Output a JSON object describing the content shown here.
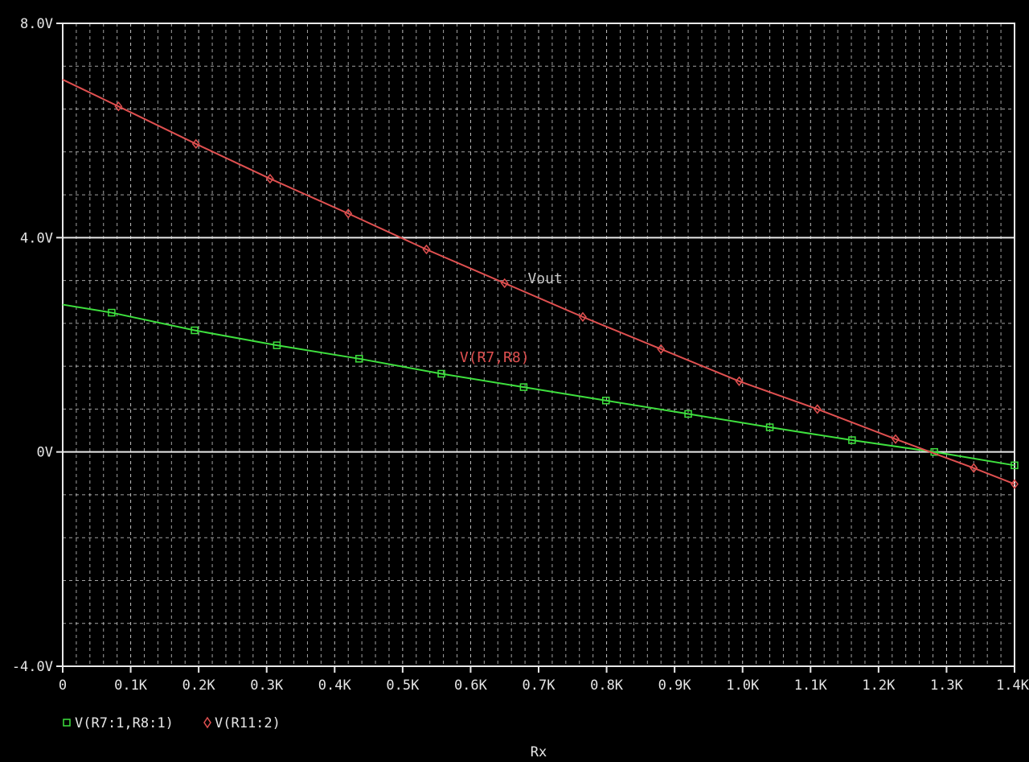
{
  "chart_data": {
    "type": "line",
    "xlabel": "Rx",
    "ylabel": "",
    "xlim": [
      0,
      1.4
    ],
    "ylim": [
      -4,
      8
    ],
    "x_ticks": [
      0,
      0.1,
      0.2,
      0.3,
      0.4,
      0.5,
      0.6,
      0.7,
      0.8,
      0.9,
      1.0,
      1.1,
      1.2,
      1.3,
      1.4
    ],
    "x_tick_labels": [
      "0",
      "0.1K",
      "0.2K",
      "0.3K",
      "0.4K",
      "0.5K",
      "0.6K",
      "0.7K",
      "0.8K",
      "0.9K",
      "1.0K",
      "1.1K",
      "1.2K",
      "1.3K",
      "1.4K"
    ],
    "y_ticks": [
      8,
      4,
      0,
      -4
    ],
    "y_tick_labels": [
      "8.0V",
      "4.0V",
      "0V",
      "-4.0V"
    ],
    "grid": true,
    "colors": {
      "background": "#000000",
      "axis": "#e8e8e8",
      "grid": "#d8d8d8",
      "green": "#3ee03e",
      "red": "#e05050",
      "vout_label": "#c8c8c8"
    },
    "series": [
      {
        "name": "V(R7:1,R8:1)",
        "marker": "square",
        "color": "#3ee03e",
        "x": [
          0,
          0.072,
          0.194,
          0.315,
          0.436,
          0.557,
          0.678,
          0.799,
          0.92,
          1.04,
          1.161,
          1.282,
          1.4
        ],
        "y": [
          2.75,
          2.6,
          2.27,
          1.99,
          1.74,
          1.46,
          1.21,
          0.96,
          0.71,
          0.46,
          0.22,
          0.0,
          -0.25
        ]
      },
      {
        "name": "V(R11:2)",
        "marker": "diamond",
        "color": "#e05050",
        "x": [
          0,
          0.082,
          0.196,
          0.305,
          0.42,
          0.535,
          0.65,
          0.765,
          0.88,
          0.995,
          1.11,
          1.225,
          1.34,
          1.4
        ],
        "y": [
          6.95,
          6.45,
          5.75,
          5.1,
          4.45,
          3.78,
          3.15,
          2.52,
          1.92,
          1.32,
          0.8,
          0.24,
          -0.3,
          -0.6
        ]
      }
    ],
    "legend": {
      "position": "bottom-left"
    },
    "annotations": [
      {
        "text": "Vout",
        "x": 0.71,
        "y": 3.15,
        "color": "#c8c8c8"
      },
      {
        "text": "V(R7,R8)",
        "x": 0.61,
        "y": 1.68,
        "color": "#e05050"
      }
    ]
  }
}
